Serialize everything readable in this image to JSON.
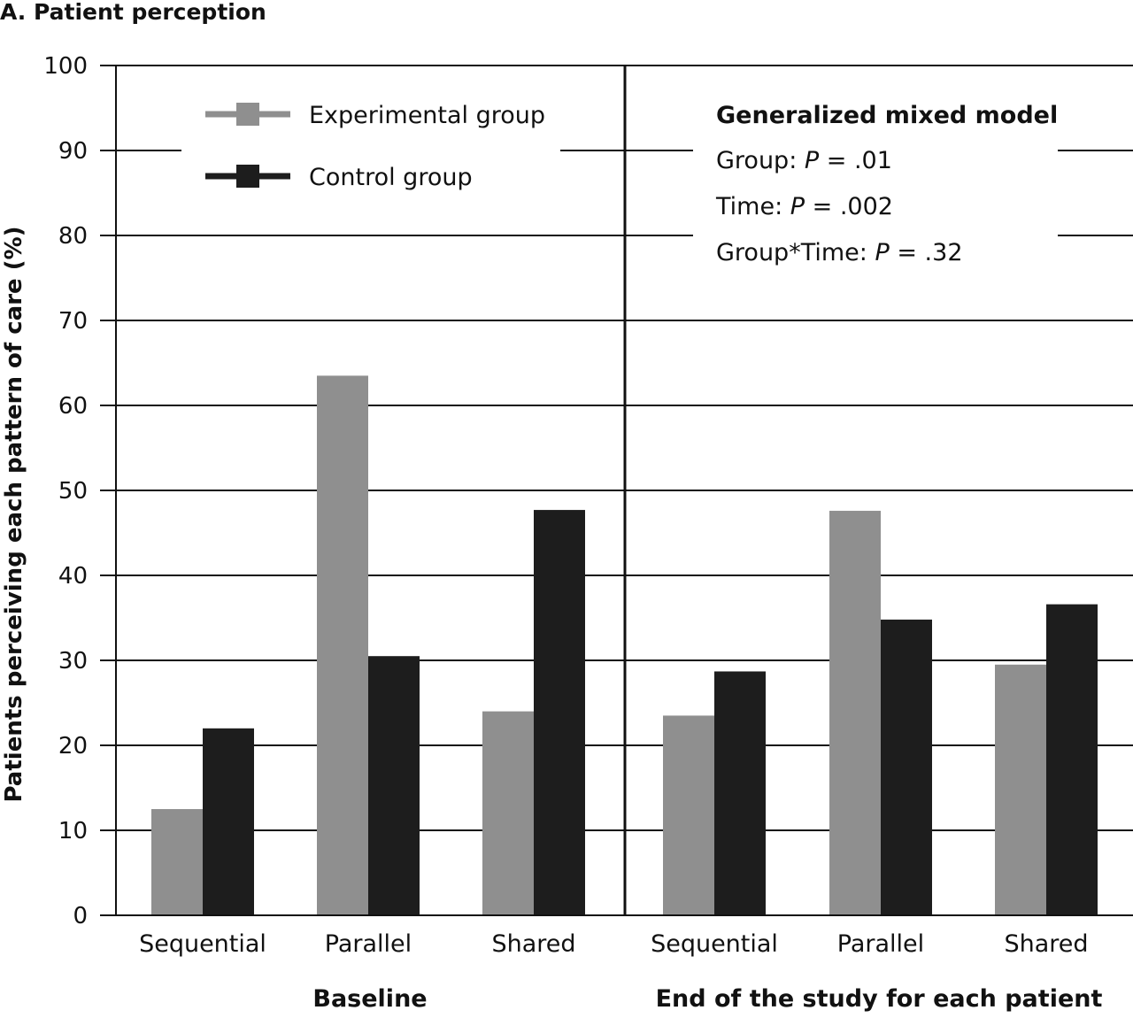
{
  "chart_data": {
    "type": "bar",
    "title": "A. Patient perception",
    "ylabel": "Patients perceiving each pattern of care (%)",
    "ylim": [
      0,
      100
    ],
    "yticks": [
      0,
      10,
      20,
      30,
      40,
      50,
      60,
      70,
      80,
      90,
      100
    ],
    "grid": true,
    "legend_position": "top-left",
    "panels": [
      {
        "label": "Baseline",
        "categories": [
          "Sequential",
          "Parallel",
          "Shared"
        ],
        "series": [
          {
            "name": "Experimental group",
            "values": [
              12.5,
              63.5,
              24
            ],
            "color": "#8f8f8f"
          },
          {
            "name": "Control group",
            "values": [
              22,
              30.5,
              47.7
            ],
            "color": "#1d1d1d"
          }
        ]
      },
      {
        "label": "End of the study for each patient",
        "categories": [
          "Sequential",
          "Parallel",
          "Shared"
        ],
        "series": [
          {
            "name": "Experimental group",
            "values": [
              23.5,
              47.6,
              29.5
            ],
            "color": "#8f8f8f"
          },
          {
            "name": "Control group",
            "values": [
              28.7,
              34.8,
              36.6
            ],
            "color": "#1d1d1d"
          }
        ]
      }
    ],
    "annotation": {
      "heading": "Generalized mixed model",
      "lines": [
        {
          "prefix": "Group: ",
          "p": "P",
          "suffix": " = .01"
        },
        {
          "prefix": "Time: ",
          "p": "P",
          "suffix": " = .002"
        },
        {
          "prefix": "Group*Time: ",
          "p": "P",
          "suffix": " = .32"
        }
      ]
    }
  }
}
